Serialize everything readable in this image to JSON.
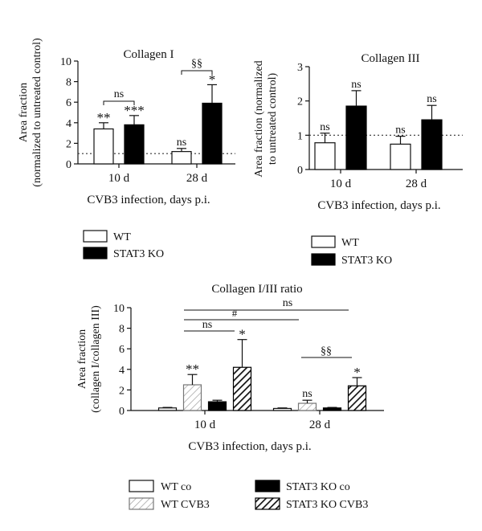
{
  "chart_data": [
    {
      "type": "bar",
      "title": "Collagen I",
      "ylabel_lines": [
        "Area fraction",
        "(normalized to untreated control)"
      ],
      "xlabel": "CVB3 infection, days p.i.",
      "categories": [
        "10 d",
        "28 d"
      ],
      "ylim": [
        0,
        10
      ],
      "yticks": [
        "0",
        "2",
        "4",
        "6",
        "8",
        "10"
      ],
      "reference_line": 1,
      "series": [
        {
          "name": "WT",
          "values": [
            3.4,
            1.2
          ],
          "errors": [
            0.6,
            0.3
          ],
          "annotations": [
            "**",
            "ns"
          ]
        },
        {
          "name": "STAT3 KO",
          "values": [
            3.8,
            5.9
          ],
          "errors": [
            0.9,
            1.8
          ],
          "annotations": [
            "***",
            "*"
          ]
        }
      ],
      "comparisons": [
        {
          "label": "ns",
          "category": "10 d"
        },
        {
          "label": "§§",
          "category": "28 d"
        }
      ],
      "legend": [
        "WT",
        "STAT3 KO"
      ]
    },
    {
      "type": "bar",
      "title": "Collagen III",
      "ylabel_lines": [
        "Area fraction (normalized",
        "to untreated control)"
      ],
      "xlabel": "CVB3 infection, days p.i.",
      "categories": [
        "10 d",
        "28 d"
      ],
      "ylim": [
        0,
        3
      ],
      "yticks": [
        "0",
        "1",
        "2",
        "3"
      ],
      "reference_line": 1,
      "series": [
        {
          "name": "WT",
          "values": [
            0.78,
            0.74
          ],
          "errors": [
            0.28,
            0.23
          ],
          "annotations": [
            "ns",
            "ns"
          ]
        },
        {
          "name": "STAT3 KO",
          "values": [
            1.85,
            1.45
          ],
          "errors": [
            0.45,
            0.42
          ],
          "annotations": [
            "ns",
            "ns"
          ]
        }
      ],
      "legend": [
        "WT",
        "STAT3 KO"
      ]
    },
    {
      "type": "bar",
      "title": "Collagen I/III ratio",
      "ylabel_lines": [
        "Area fraction",
        "(collagen I/collagen III)"
      ],
      "xlabel": "CVB3 infection, days p.i.",
      "categories": [
        "10 d",
        "28 d"
      ],
      "ylim": [
        0,
        10
      ],
      "yticks": [
        "0",
        "2",
        "4",
        "6",
        "8",
        "10"
      ],
      "series": [
        {
          "name": "WT co",
          "values": [
            0.25,
            0.2
          ],
          "errors": [
            0.05,
            0.05
          ],
          "annotations": [
            "",
            ""
          ]
        },
        {
          "name": "WT CVB3",
          "values": [
            2.5,
            0.7
          ],
          "errors": [
            1.0,
            0.3
          ],
          "annotations": [
            "**",
            "ns"
          ]
        },
        {
          "name": "STAT3 KO co",
          "values": [
            0.85,
            0.25
          ],
          "errors": [
            0.15,
            0.05
          ],
          "annotations": [
            "",
            ""
          ]
        },
        {
          "name": "STAT3 KO CVB3",
          "values": [
            4.2,
            2.4
          ],
          "errors": [
            2.7,
            0.8
          ],
          "annotations": [
            "*",
            "*"
          ]
        }
      ],
      "comparisons": [
        {
          "label": "ns"
        },
        {
          "label": "#"
        },
        {
          "label": "ns"
        },
        {
          "label": "§§"
        }
      ],
      "legend": [
        "WT co",
        "WT CVB3",
        "STAT3 KO co",
        "STAT3 KO CVB3"
      ]
    }
  ]
}
